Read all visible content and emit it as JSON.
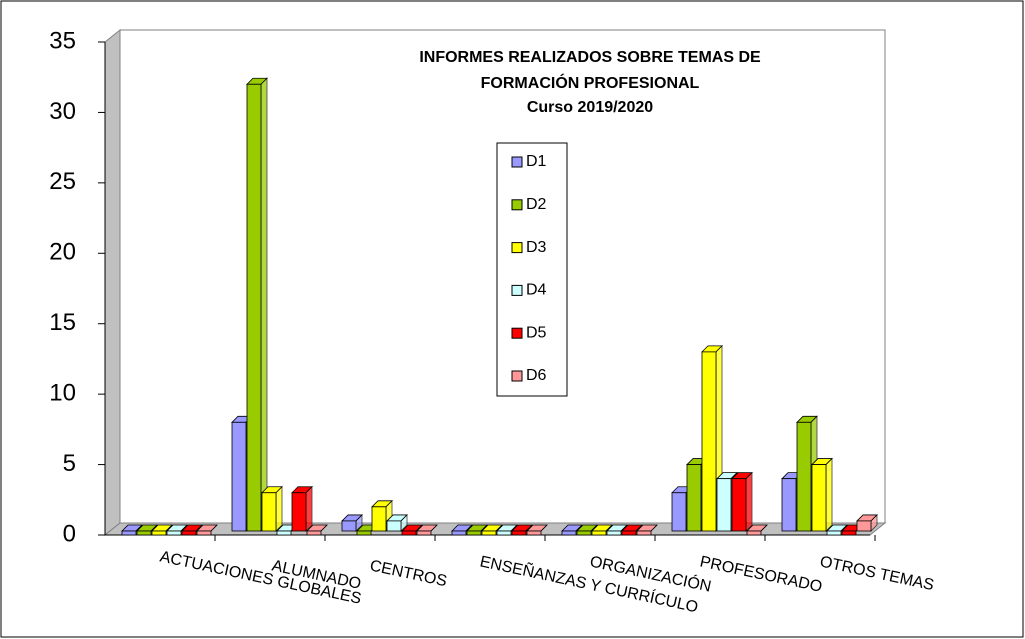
{
  "chart_data": {
    "type": "bar3d",
    "title": [
      "INFORMES REALIZADOS SOBRE TEMAS DE",
      "FORMACIÓN PROFESIONAL"
    ],
    "subtitle": "Curso 2019/2020",
    "categories": [
      "ACTUACIONES GLOBALES",
      "ALUMNADO",
      "CENTROS",
      "ENSEÑANZAS Y CURRÍCULO",
      "ORGANIZACIÓN",
      "PROFESORADO",
      "OTROS TEMAS"
    ],
    "series": [
      {
        "name": "D1",
        "color": "#9999ff",
        "values": [
          0,
          8,
          1,
          0,
          0,
          3,
          4
        ]
      },
      {
        "name": "D2",
        "color": "#99cc00",
        "values": [
          0,
          32,
          0,
          0,
          0,
          5,
          8
        ]
      },
      {
        "name": "D3",
        "color": "#ffff00",
        "values": [
          0,
          3,
          2,
          0,
          0,
          13,
          5
        ]
      },
      {
        "name": "D4",
        "color": "#ccffff",
        "values": [
          0,
          0,
          1,
          0,
          0,
          4,
          0
        ]
      },
      {
        "name": "D5",
        "color": "#ff0000",
        "values": [
          0,
          3,
          0,
          0,
          0,
          4,
          0
        ]
      },
      {
        "name": "D6",
        "color": "#ff9999",
        "values": [
          0,
          0,
          0,
          0,
          0,
          0,
          1
        ]
      }
    ],
    "ylim": [
      0,
      35
    ],
    "yticks": [
      0,
      5,
      10,
      15,
      20,
      25,
      30,
      35
    ],
    "grid": false
  }
}
